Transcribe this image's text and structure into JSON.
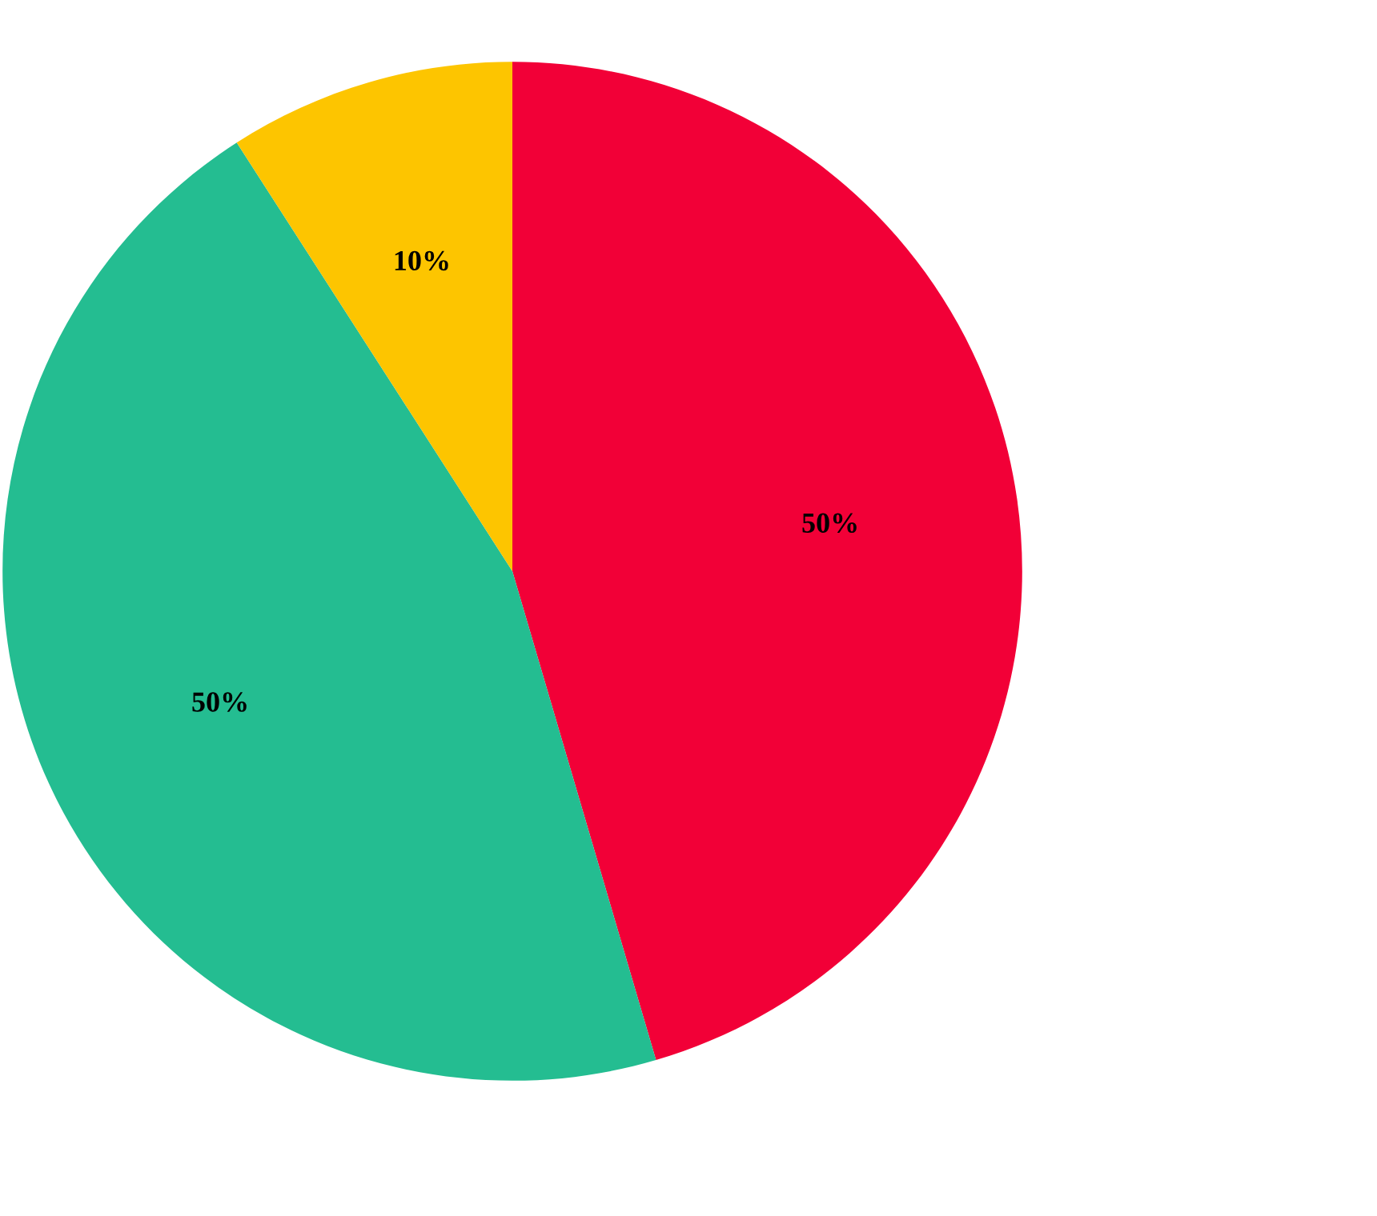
{
  "chart_data": {
    "type": "pie",
    "categories": [
      null,
      null,
      null
    ],
    "values": [
      50,
      50,
      10
    ],
    "colors": [
      "#f20037",
      "#24bd91",
      "#fdc500"
    ],
    "value_labels": [
      "50%",
      "50%",
      "10%"
    ]
  }
}
